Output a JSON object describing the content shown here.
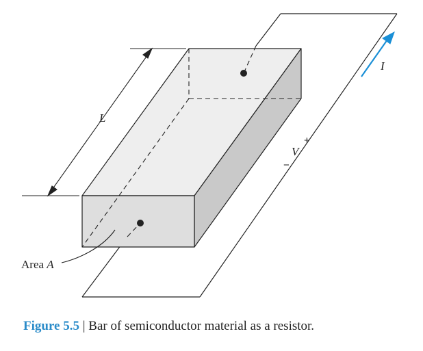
{
  "diagram": {
    "length_label": "L",
    "area_label_prefix": "Area ",
    "area_label_var": "A",
    "voltage_label": "V",
    "plus_sign": "+",
    "minus_sign": "−",
    "current_label": "I",
    "colors": {
      "top_face": "#eeeeee",
      "front_face": "#dedede",
      "side_face": "#c9c9c9",
      "outline": "#222222",
      "current_arrow": "#1a8fd6",
      "caption_number": "#2a8bc9"
    }
  },
  "caption": {
    "number": "Figure 5.5",
    "separator": " | ",
    "text": "Bar of semiconductor material as a resistor."
  }
}
